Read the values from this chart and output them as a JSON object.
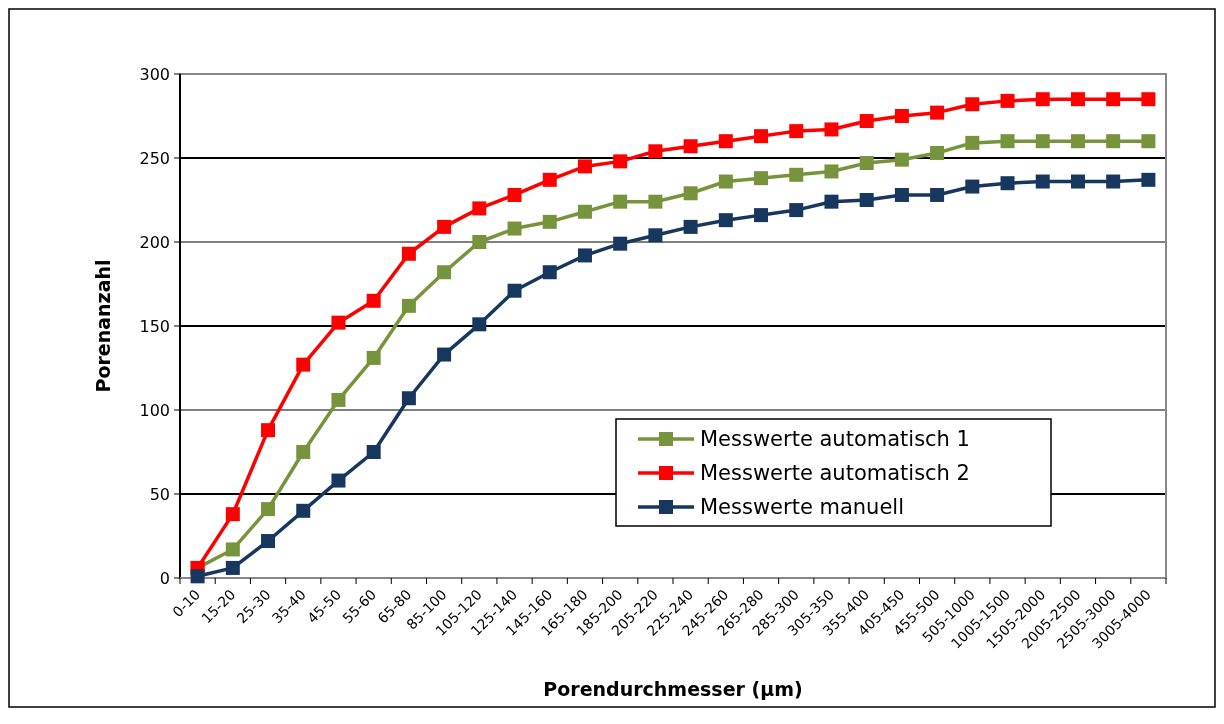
{
  "chart_data": {
    "type": "line",
    "xlabel": "Porendurchmesser (µm)",
    "ylabel": "Porenanzahl",
    "categories": [
      "0-10",
      "15-20",
      "25-30",
      "35-40",
      "45-50",
      "55-60",
      "65-80",
      "85-100",
      "105-120",
      "125-140",
      "145-160",
      "165-180",
      "185-200",
      "205-220",
      "225-240",
      "245-260",
      "265-280",
      "285-300",
      "305-350",
      "355-400",
      "405-450",
      "455-500",
      "505-1000",
      "1005-1500",
      "1505-2000",
      "2005-2500",
      "2505-3000",
      "3005-4000"
    ],
    "series": [
      {
        "name": "Messwerte automatisch 1",
        "color": "#77933c",
        "values": [
          6,
          17,
          41,
          75,
          106,
          131,
          162,
          182,
          200,
          208,
          212,
          218,
          224,
          224,
          229,
          236,
          238,
          240,
          242,
          247,
          249,
          253,
          259,
          260,
          260,
          260,
          260,
          260
        ]
      },
      {
        "name": "Messwerte automatisch 2",
        "color": "#ff0000",
        "values": [
          6,
          38,
          88,
          127,
          152,
          165,
          193,
          209,
          220,
          228,
          237,
          245,
          248,
          254,
          257,
          260,
          263,
          266,
          267,
          272,
          275,
          277,
          282,
          284,
          285,
          285,
          285,
          285
        ]
      },
      {
        "name": "Messwerte manuell",
        "color": "#17375e",
        "values": [
          1,
          6,
          22,
          40,
          58,
          75,
          107,
          133,
          151,
          171,
          182,
          192,
          199,
          204,
          209,
          213,
          216,
          219,
          224,
          225,
          228,
          228,
          233,
          235,
          236,
          236,
          236,
          237
        ]
      }
    ],
    "ylim": [
      0,
      300
    ],
    "yticks": [
      0,
      50,
      100,
      150,
      200,
      250,
      300
    ],
    "grid": "y",
    "legend": "right",
    "marker": "square",
    "line_style": "solid"
  }
}
